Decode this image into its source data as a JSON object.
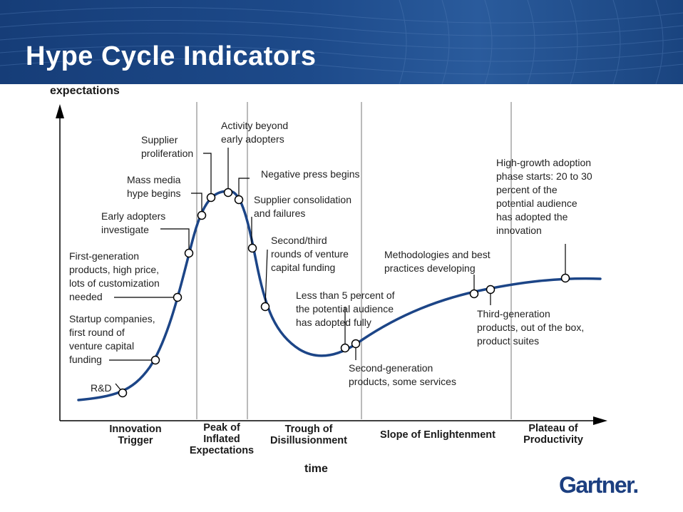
{
  "title": "Hype Cycle Indicators",
  "axes": {
    "y_label": "expectations",
    "x_label": "time"
  },
  "phases": [
    {
      "id": "innovation-trigger",
      "lines": [
        "Innovation",
        "Trigger"
      ]
    },
    {
      "id": "peak",
      "lines": [
        "Peak of",
        "Inflated",
        "Expectations"
      ]
    },
    {
      "id": "trough",
      "lines": [
        "Trough of",
        "Disillusionment"
      ]
    },
    {
      "id": "slope",
      "lines": [
        "Slope of Enlightenment"
      ]
    },
    {
      "id": "plateau",
      "lines": [
        "Plateau of",
        "Productivity"
      ]
    }
  ],
  "indicators": [
    {
      "id": "rd",
      "lines": [
        "R&D"
      ]
    },
    {
      "id": "startup",
      "lines": [
        "Startup companies,",
        "first round of",
        "venture capital",
        "funding"
      ]
    },
    {
      "id": "first-gen",
      "lines": [
        "First-generation",
        "products, high price,",
        "lots of customization",
        "needed"
      ]
    },
    {
      "id": "early-adopters",
      "lines": [
        "Early adopters",
        "investigate"
      ]
    },
    {
      "id": "mass-media",
      "lines": [
        "Mass media",
        "hype begins"
      ]
    },
    {
      "id": "supplier-prolif",
      "lines": [
        "Supplier",
        "proliferation"
      ]
    },
    {
      "id": "activity",
      "lines": [
        "Activity beyond",
        "early adopters"
      ]
    },
    {
      "id": "negative-press",
      "lines": [
        "Negative press begins"
      ]
    },
    {
      "id": "consolidation",
      "lines": [
        "Supplier consolidation",
        "and failures"
      ]
    },
    {
      "id": "second-third",
      "lines": [
        "Second/third",
        "rounds of venture",
        "capital funding"
      ]
    },
    {
      "id": "less-than-5",
      "lines": [
        "Less than 5 percent of",
        "the potential audience",
        "has adopted fully"
      ]
    },
    {
      "id": "second-gen",
      "lines": [
        "Second-generation",
        "products, some services"
      ]
    },
    {
      "id": "methodologies",
      "lines": [
        "Methodologies and best",
        "practices developing"
      ]
    },
    {
      "id": "third-gen",
      "lines": [
        "Third-generation",
        "products, out of the box,",
        "product suites"
      ]
    },
    {
      "id": "high-growth",
      "lines": [
        "High-growth adoption",
        "phase starts: 20 to 30",
        "percent of the",
        "potential audience",
        "has adopted the",
        "innovation"
      ]
    }
  ],
  "logo": "Gartner.",
  "colors": {
    "curve": "#1c4587",
    "banner": "#1d4a8a",
    "logo": "#1c3f80"
  }
}
